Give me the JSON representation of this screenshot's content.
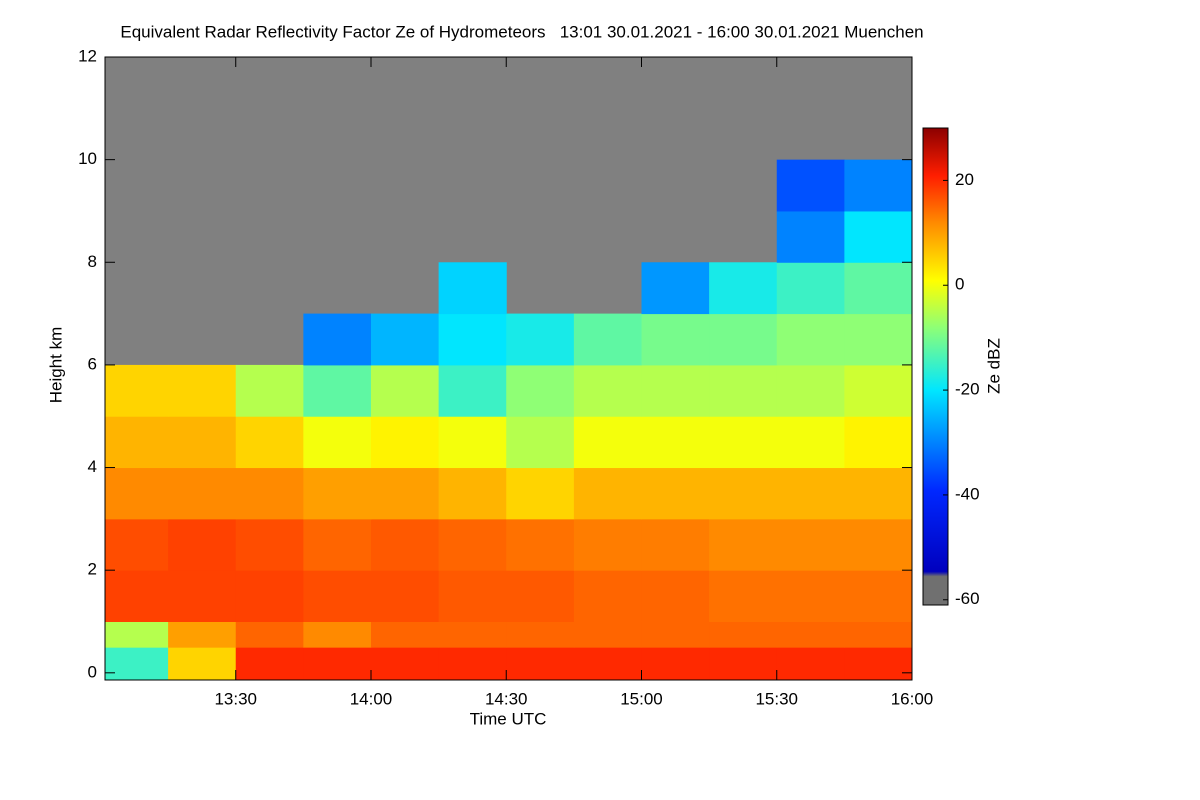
{
  "chart_data": {
    "type": "heatmap",
    "title": "Equivalent Radar Reflectivity Factor Ze of Hydrometeors   13:01 30.01.2021 - 16:00 30.01.2021 Muenchen",
    "x_label": "Time UTC",
    "y_label": "Height km",
    "colorbar_label": "Ze dBZ",
    "xbins": [
      13.0167,
      13.25,
      13.5,
      13.75,
      14.0,
      14.25,
      14.5,
      14.75,
      15.0,
      15.25,
      15.5,
      15.75,
      16.0
    ],
    "ybins": [
      -0.14,
      0.5,
      1,
      2,
      3,
      4,
      5,
      6,
      7,
      8,
      9,
      10,
      12
    ],
    "z": [
      [
        -15,
        5,
        20,
        20,
        20,
        20,
        20,
        20,
        20,
        20,
        20,
        20
      ],
      [
        -5,
        10,
        15,
        12,
        15,
        15,
        15,
        15,
        15,
        15,
        15,
        15
      ],
      [
        18,
        18,
        18,
        17,
        17,
        16,
        16,
        15,
        15,
        14,
        14,
        14
      ],
      [
        17,
        18,
        17,
        15,
        16,
        15,
        14,
        13,
        13,
        12,
        12,
        12
      ],
      [
        12,
        12,
        12,
        10,
        10,
        8,
        5,
        8,
        8,
        8,
        8,
        8
      ],
      [
        8,
        8,
        5,
        0,
        2,
        0,
        -5,
        0,
        0,
        0,
        0,
        2
      ],
      [
        5,
        5,
        -5,
        -12,
        -5,
        -15,
        -8,
        -5,
        -5,
        -5,
        -5,
        -3
      ],
      [
        null,
        null,
        null,
        -30,
        -25,
        -20,
        -18,
        -12,
        -10,
        -10,
        -8,
        -8
      ],
      [
        null,
        null,
        null,
        null,
        null,
        -22,
        null,
        null,
        -28,
        -18,
        -15,
        -12
      ],
      [
        null,
        null,
        null,
        null,
        null,
        null,
        null,
        null,
        null,
        null,
        -30,
        -20
      ],
      [
        null,
        null,
        null,
        null,
        null,
        null,
        null,
        null,
        null,
        null,
        -35,
        -30
      ],
      [
        null,
        null,
        null,
        null,
        null,
        null,
        null,
        null,
        null,
        null,
        null,
        null
      ]
    ],
    "xlim": [
      13.0167,
      16.0
    ],
    "ylim": [
      -0.14,
      12
    ],
    "zlim": [
      -61,
      30
    ],
    "xticks": [
      {
        "value": 13.5,
        "label": "13:30"
      },
      {
        "value": 14.0,
        "label": "14:00"
      },
      {
        "value": 14.5,
        "label": "14:30"
      },
      {
        "value": 15.0,
        "label": "15:00"
      },
      {
        "value": 15.5,
        "label": "15:30"
      },
      {
        "value": 16.0,
        "label": "16:00"
      }
    ],
    "yticks": [
      0,
      2,
      4,
      6,
      8,
      10,
      12
    ],
    "zticks": [
      -60,
      -40,
      -20,
      0,
      20
    ],
    "background": "#808080"
  }
}
